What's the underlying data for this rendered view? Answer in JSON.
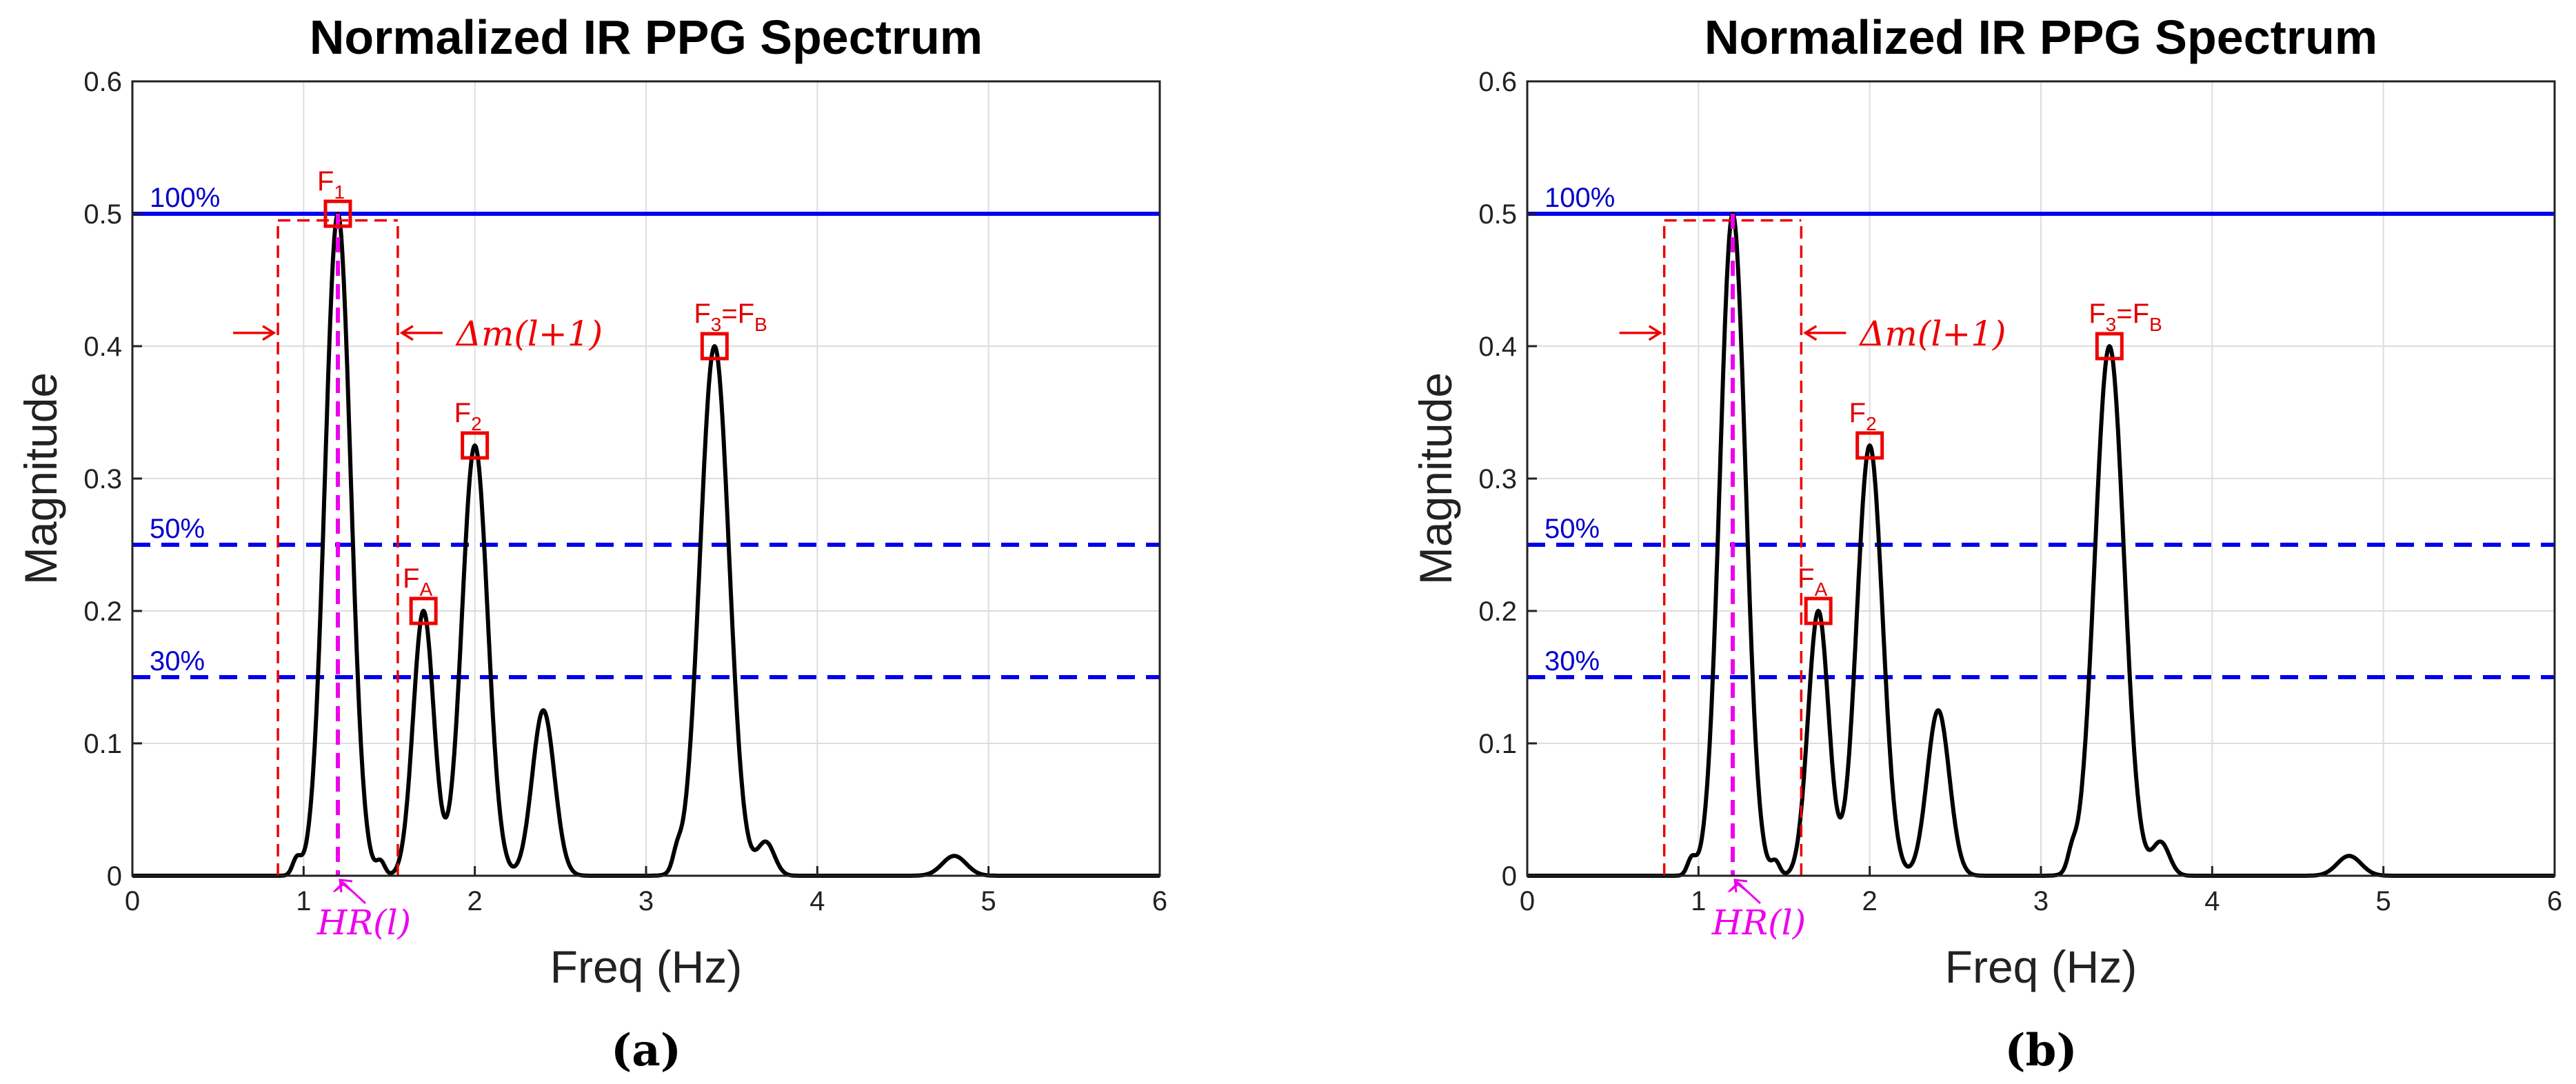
{
  "chart_data": [
    {
      "panel_label": "(a)",
      "type": "line",
      "title": "Normalized IR PPG Spectrum",
      "xlabel": "Freq (Hz)",
      "ylabel": "Magnitude",
      "xlim": [
        0,
        6
      ],
      "ylim": [
        0,
        0.6
      ],
      "xticks": [
        "0",
        "1",
        "2",
        "3",
        "4",
        "5",
        "6"
      ],
      "yticks": [
        "0",
        "0.1",
        "0.2",
        "0.3",
        "0.4",
        "0.5",
        "0.6"
      ],
      "grid": true,
      "spectrum_peaks": [
        {
          "f": 1.2,
          "a": 0.5,
          "w": 0.075
        },
        {
          "f": 1.7,
          "a": 0.2,
          "w": 0.06
        },
        {
          "f": 2.0,
          "a": 0.325,
          "w": 0.075
        },
        {
          "f": 2.4,
          "a": 0.125,
          "w": 0.065
        },
        {
          "f": 3.4,
          "a": 0.4,
          "w": 0.085
        },
        {
          "f": 3.7,
          "a": 0.025,
          "w": 0.05
        },
        {
          "f": 4.8,
          "a": 0.015,
          "w": 0.07
        },
        {
          "f": 0.96,
          "a": 0.012,
          "w": 0.025
        },
        {
          "f": 1.45,
          "a": 0.01,
          "w": 0.025
        },
        {
          "f": 3.18,
          "a": 0.012,
          "w": 0.025
        }
      ],
      "levels": [
        {
          "label": "100%",
          "y": 0.5,
          "style": "solid"
        },
        {
          "label": "50%",
          "y": 0.25,
          "style": "dashed"
        },
        {
          "label": "30%",
          "y": 0.15,
          "style": "dashed"
        }
      ],
      "markers": [
        {
          "label": "F",
          "sub": "1",
          "x": 1.2,
          "y": 0.5
        },
        {
          "label": "F",
          "sub": "A",
          "x": 1.7,
          "y": 0.2
        },
        {
          "label": "F",
          "sub": "2",
          "x": 2.0,
          "y": 0.325
        },
        {
          "label": "F",
          "sub": "3",
          "suffix": "=F",
          "suffix_sub": "B",
          "x": 3.4,
          "y": 0.4
        }
      ],
      "hr_estimate": {
        "label": "HR(l)",
        "hat": "^",
        "x": 1.2
      },
      "search_window": {
        "label": "Δm(l+1)",
        "x0": 0.85,
        "x1": 1.55,
        "y_top": 0.495
      }
    },
    {
      "panel_label": "(b)",
      "type": "line",
      "title": "Normalized IR PPG Spectrum",
      "xlabel": "Freq (Hz)",
      "ylabel": "Magnitude",
      "xlim": [
        0,
        6
      ],
      "ylim": [
        0,
        0.6
      ],
      "xticks": [
        "0",
        "1",
        "2",
        "3",
        "4",
        "5",
        "6"
      ],
      "yticks": [
        "0",
        "0.1",
        "0.2",
        "0.3",
        "0.4",
        "0.5",
        "0.6"
      ],
      "grid": true,
      "spectrum_peaks": [
        {
          "f": 1.2,
          "a": 0.5,
          "w": 0.075
        },
        {
          "f": 1.7,
          "a": 0.2,
          "w": 0.06
        },
        {
          "f": 2.0,
          "a": 0.325,
          "w": 0.075
        },
        {
          "f": 2.4,
          "a": 0.125,
          "w": 0.065
        },
        {
          "f": 3.4,
          "a": 0.4,
          "w": 0.085
        },
        {
          "f": 3.7,
          "a": 0.025,
          "w": 0.05
        },
        {
          "f": 4.8,
          "a": 0.015,
          "w": 0.07
        },
        {
          "f": 0.96,
          "a": 0.012,
          "w": 0.025
        },
        {
          "f": 1.45,
          "a": 0.01,
          "w": 0.025
        },
        {
          "f": 3.18,
          "a": 0.012,
          "w": 0.025
        }
      ],
      "levels": [
        {
          "label": "100%",
          "y": 0.5,
          "style": "solid"
        },
        {
          "label": "50%",
          "y": 0.25,
          "style": "dashed"
        },
        {
          "label": "30%",
          "y": 0.15,
          "style": "dashed"
        }
      ],
      "markers": [
        {
          "label": "F",
          "sub": "A",
          "x": 1.7,
          "y": 0.2
        },
        {
          "label": "F",
          "sub": "2",
          "x": 2.0,
          "y": 0.325
        },
        {
          "label": "F",
          "sub": "3",
          "suffix": "=F",
          "suffix_sub": "B",
          "x": 3.4,
          "y": 0.4
        }
      ],
      "hr_estimate": {
        "label": "HR(l)",
        "hat": "^",
        "x": 1.2
      },
      "search_window": {
        "label": "Δm(l+1)",
        "x0": 0.8,
        "x1": 1.6,
        "y_top": 0.495
      }
    }
  ],
  "colors": {
    "curve": "#000000",
    "level": "#0000ee",
    "marker": "#ee0000",
    "window": "#ee0000",
    "hr": "#ee00ee",
    "grid": "#dddddd",
    "level_text": "#0000cc"
  }
}
